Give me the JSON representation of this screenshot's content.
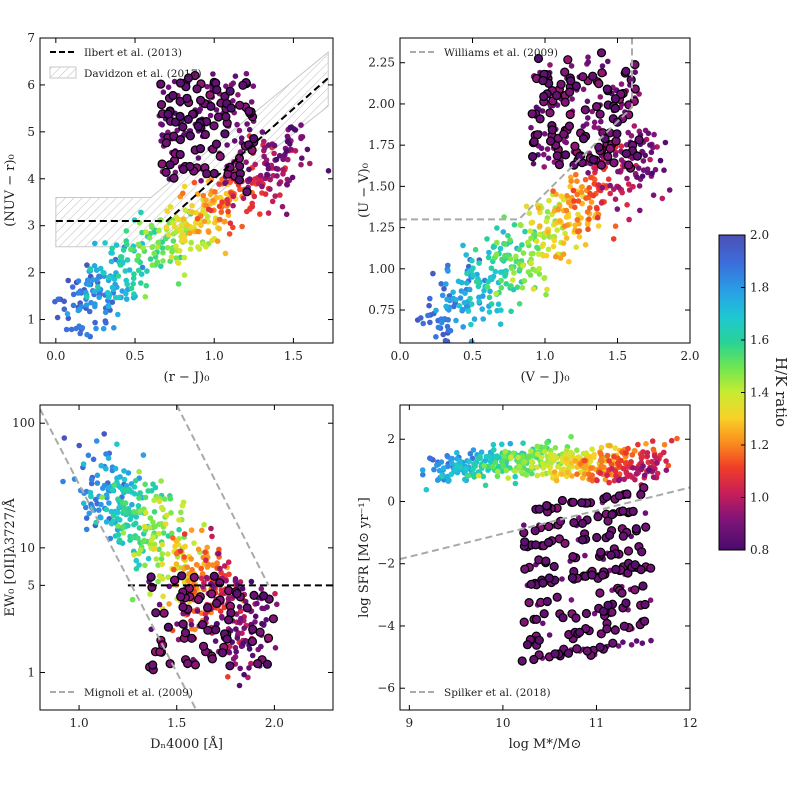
{
  "colorbar": {
    "label": "H/K ratio",
    "ticks": [
      0.8,
      1.0,
      1.2,
      1.4,
      1.6,
      1.8,
      2.0
    ],
    "tick_labels": [
      "0.8",
      "1.0",
      "1.2",
      "1.4",
      "1.6",
      "1.8",
      "2.0"
    ],
    "range": [
      0.8,
      2.0
    ]
  },
  "chart_data": [
    {
      "type": "scatter",
      "xlabel": "(r − J)₀",
      "ylabel": "(NUV − r)₀",
      "xlim": [
        -0.1,
        1.75
      ],
      "ylim": [
        0.5,
        7.0
      ],
      "x_ticks": [
        0.0,
        0.5,
        1.0,
        1.5
      ],
      "x_tick_labels": [
        "0.0",
        "0.5",
        "1.0",
        "1.5"
      ],
      "y_ticks": [
        1,
        2,
        3,
        4,
        5,
        6,
        7
      ],
      "y_tick_labels": [
        "1",
        "2",
        "3",
        "4",
        "5",
        "6",
        "7"
      ],
      "legend": [
        {
          "label": "Ilbert et al. (2013)",
          "style": "dashed-black"
        },
        {
          "label": "Davidzon et al. (2017)",
          "style": "hatched"
        }
      ],
      "lines": [
        {
          "style": "dashed-black",
          "points": [
            [
              0.0,
              3.1
            ],
            [
              0.7,
              3.1
            ],
            [
              1.72,
              6.15
            ]
          ]
        },
        {
          "style": "hatched-polygon",
          "points": [
            [
              0.0,
              3.6
            ],
            [
              0.6,
              3.6
            ],
            [
              1.72,
              6.7
            ],
            [
              1.72,
              5.55
            ],
            [
              0.6,
              2.55
            ],
            [
              0.0,
              2.55
            ]
          ]
        }
      ],
      "scatter_gen": {
        "kind": "nuvrj",
        "n": 700,
        "seed": 11
      }
    },
    {
      "type": "scatter",
      "xlabel": "(V − J)₀",
      "ylabel": "(U − V)₀",
      "xlim": [
        0.0,
        2.0
      ],
      "ylim": [
        0.55,
        2.4
      ],
      "x_ticks": [
        0.0,
        0.5,
        1.0,
        1.5,
        2.0
      ],
      "x_tick_labels": [
        "0.0",
        "0.5",
        "1.0",
        "1.5",
        "2.0"
      ],
      "y_ticks": [
        0.75,
        1.0,
        1.25,
        1.5,
        1.75,
        2.0,
        2.25
      ],
      "y_tick_labels": [
        "0.75",
        "1.00",
        "1.25",
        "1.50",
        "1.75",
        "2.00",
        "2.25"
      ],
      "legend": [
        {
          "label": "Williams et al. (2009)",
          "style": "dashed-gray"
        }
      ],
      "lines": [
        {
          "style": "dashed-gray",
          "points": [
            [
              0.0,
              1.3
            ],
            [
              0.82,
              1.3
            ],
            [
              1.6,
              1.98
            ],
            [
              1.6,
              2.4
            ]
          ]
        }
      ],
      "scatter_gen": {
        "kind": "uvj",
        "n": 700,
        "seed": 23
      }
    },
    {
      "type": "scatter",
      "xlabel": "Dₙ4000 [Å]",
      "ylabel": "EW₀ [OII]λ3727/Å",
      "yscale": "log",
      "xlim": [
        0.8,
        2.3
      ],
      "ylim": [
        0.5,
        140
      ],
      "x_ticks": [
        1.0,
        1.5,
        2.0
      ],
      "x_tick_labels": [
        "1.0",
        "1.5",
        "2.0"
      ],
      "y_ticks": [
        1,
        5,
        10,
        100
      ],
      "y_tick_labels": [
        "1",
        "5",
        "10",
        "100"
      ],
      "legend": [
        {
          "label": "Mignoli et al. (2009)",
          "style": "dashed-gray"
        }
      ],
      "lines": [
        {
          "style": "dashed-black",
          "points": [
            [
              1.25,
              5.0
            ],
            [
              2.3,
              5.0
            ]
          ]
        },
        {
          "style": "dashed-gray",
          "points": [
            [
              0.8,
              130
            ],
            [
              1.6,
              0.5
            ]
          ]
        },
        {
          "style": "dashed-gray",
          "points": [
            [
              1.5,
              140
            ],
            [
              1.97,
              5.0
            ]
          ]
        }
      ],
      "scatter_gen": {
        "kind": "d4000",
        "n": 650,
        "seed": 37
      }
    },
    {
      "type": "scatter",
      "xlabel": "log M*/M⊙",
      "ylabel": "log SFR [M⊙ yr⁻¹]",
      "xlim": [
        8.9,
        12.0
      ],
      "ylim": [
        -6.7,
        3.1
      ],
      "x_ticks": [
        9,
        10,
        11,
        12
      ],
      "x_tick_labels": [
        "9",
        "10",
        "11",
        "12"
      ],
      "y_ticks": [
        -6,
        -4,
        -2,
        0,
        2
      ],
      "y_tick_labels": [
        "−6",
        "−4",
        "−2",
        "0",
        "2"
      ],
      "legend": [
        {
          "label": "Spilker et al. (2018)",
          "style": "dashed-gray"
        }
      ],
      "lines": [
        {
          "style": "dashed-gray",
          "points": [
            [
              8.9,
              -1.85
            ],
            [
              12.0,
              0.45
            ]
          ]
        }
      ],
      "scatter_gen": {
        "kind": "sfr",
        "n": 750,
        "seed": 53
      }
    }
  ]
}
